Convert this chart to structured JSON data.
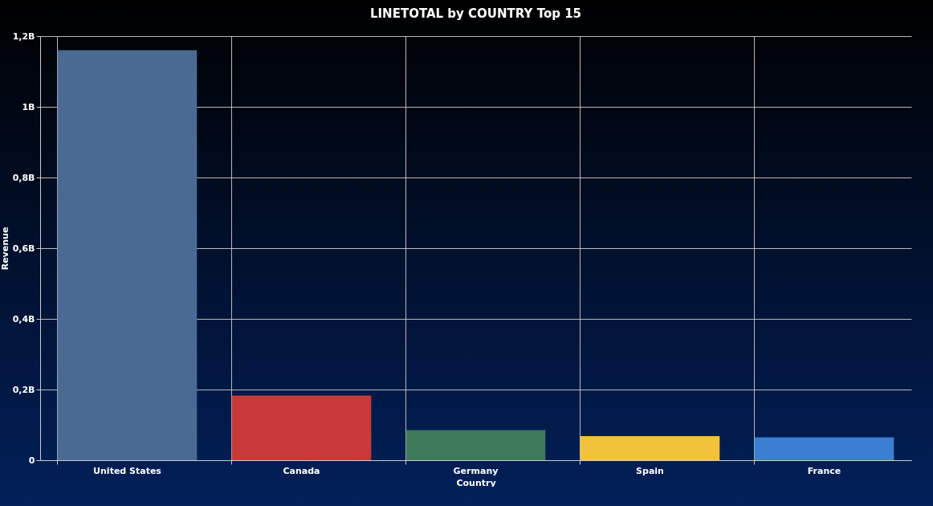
{
  "chart_data": {
    "type": "bar",
    "title": "LINETOTAL by COUNTRY Top 15",
    "xlabel": "Country",
    "ylabel": "Revenue",
    "categories": [
      "United States",
      "Canada",
      "Germany",
      "Spain",
      "France"
    ],
    "values": [
      1160000000,
      183000000,
      85000000,
      68000000,
      65000000
    ],
    "colors": [
      "#4a6a94",
      "#c83a3a",
      "#3e7a5a",
      "#f2c23c",
      "#3a7fd0"
    ],
    "ylim": [
      0,
      1200000000
    ],
    "yticks": [
      {
        "value": 0,
        "label": "0"
      },
      {
        "value": 200000000,
        "label": "0,2B"
      },
      {
        "value": 400000000,
        "label": "0,4B"
      },
      {
        "value": 600000000,
        "label": "0,6B"
      },
      {
        "value": 800000000,
        "label": "0,8B"
      },
      {
        "value": 1000000000,
        "label": "1B"
      },
      {
        "value": 1200000000,
        "label": "1,2B"
      }
    ],
    "grid": true,
    "legend": false
  }
}
